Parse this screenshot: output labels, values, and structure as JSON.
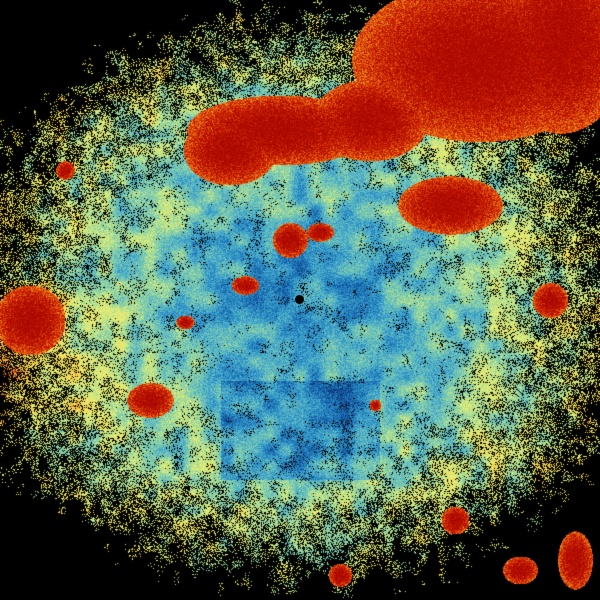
{
  "colormap": [
    "#0a2a6a",
    "#1560a8",
    "#2a90c8",
    "#5ab8c8",
    "#8fd4a0",
    "#d8ec80",
    "#f6e860",
    "#f2b22c",
    "#e6600e",
    "#c41800",
    "#a80800"
  ],
  "background_color": "#000000",
  "radar_site_marker": "dot"
}
